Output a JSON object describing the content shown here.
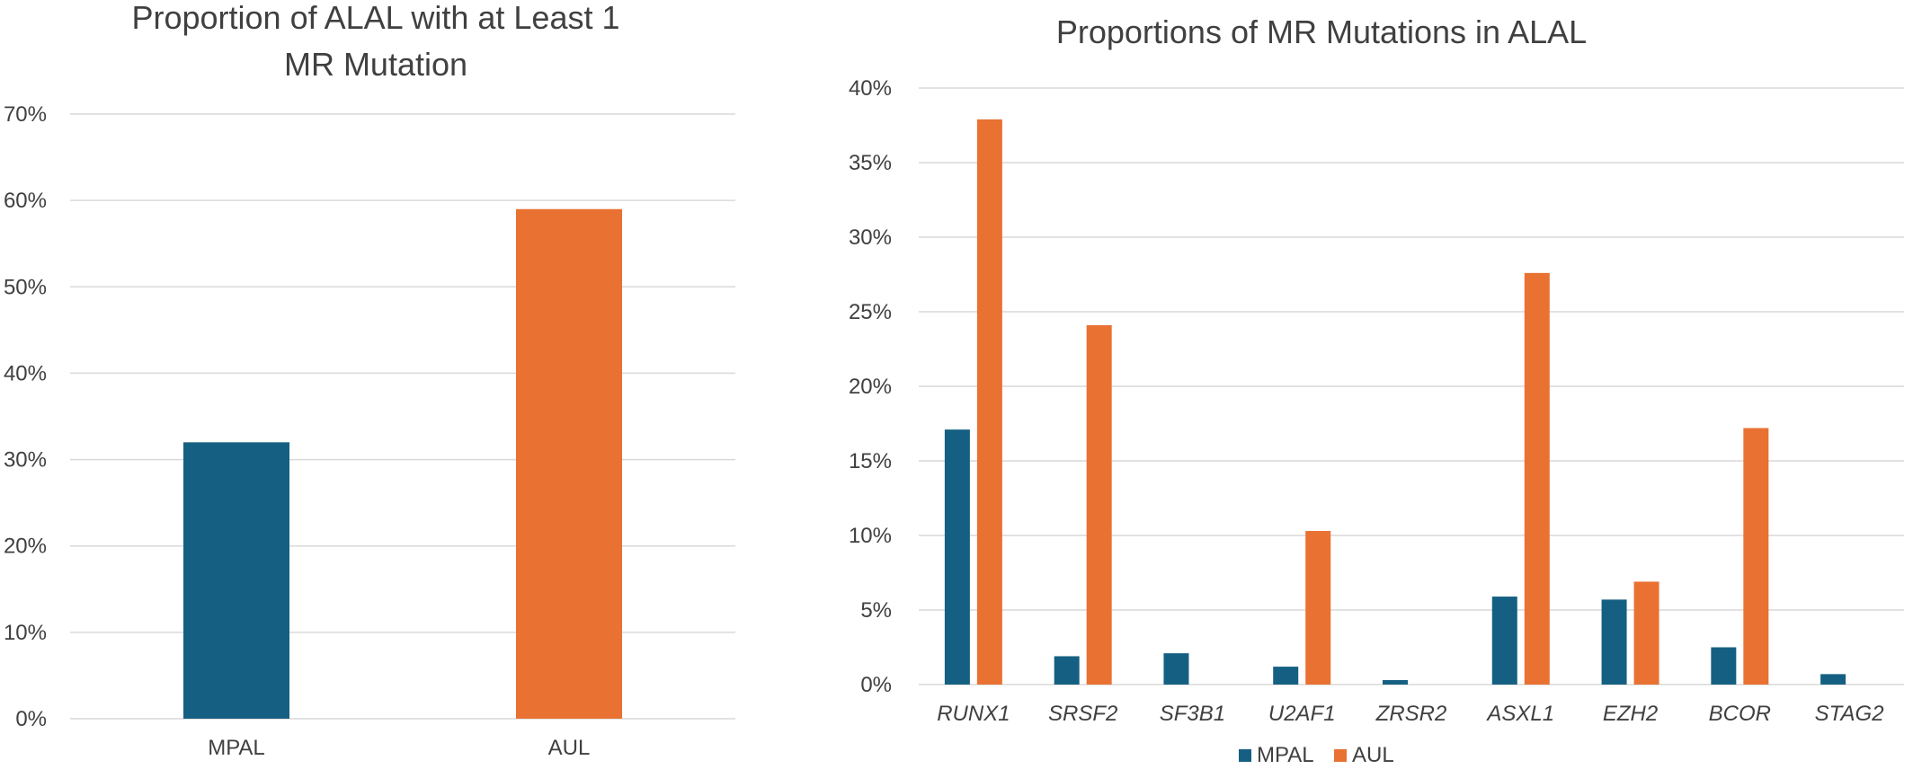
{
  "colors": {
    "MPAL": "#156082",
    "AUL": "#E97132",
    "grid": "#D9D9D9",
    "text": "#404040"
  },
  "chart_data": [
    {
      "type": "bar",
      "title_lines": [
        "Proportion of ALAL with at Least 1",
        "MR Mutation"
      ],
      "categories": [
        "MPAL",
        "AUL"
      ],
      "values": [
        0.32,
        0.59
      ],
      "bar_colors": [
        "#156082",
        "#E97132"
      ],
      "ylim": [
        0,
        0.7
      ],
      "yticks": [
        "0%",
        "10%",
        "20%",
        "30%",
        "40%",
        "50%",
        "60%",
        "70%"
      ],
      "grid": true,
      "legend": "none"
    },
    {
      "type": "bar",
      "title": "Proportions of MR Mutations in ALAL",
      "categories": [
        "RUNX1",
        "SRSF2",
        "SF3B1",
        "U2AF1",
        "ZRSR2",
        "ASXL1",
        "EZH2",
        "BCOR",
        "STAG2"
      ],
      "series": [
        {
          "name": "MPAL",
          "values": [
            0.171,
            0.019,
            0.021,
            0.012,
            0.003,
            0.059,
            0.057,
            0.025,
            0.007
          ]
        },
        {
          "name": "AUL",
          "values": [
            0.379,
            0.241,
            0.0,
            0.103,
            0.0,
            0.276,
            0.069,
            0.172,
            0.0
          ]
        }
      ],
      "ylim": [
        0,
        0.4
      ],
      "yticks": [
        "0%",
        "5%",
        "10%",
        "15%",
        "20%",
        "25%",
        "30%",
        "35%",
        "40%"
      ],
      "grid": true,
      "legend": "bottom"
    }
  ]
}
